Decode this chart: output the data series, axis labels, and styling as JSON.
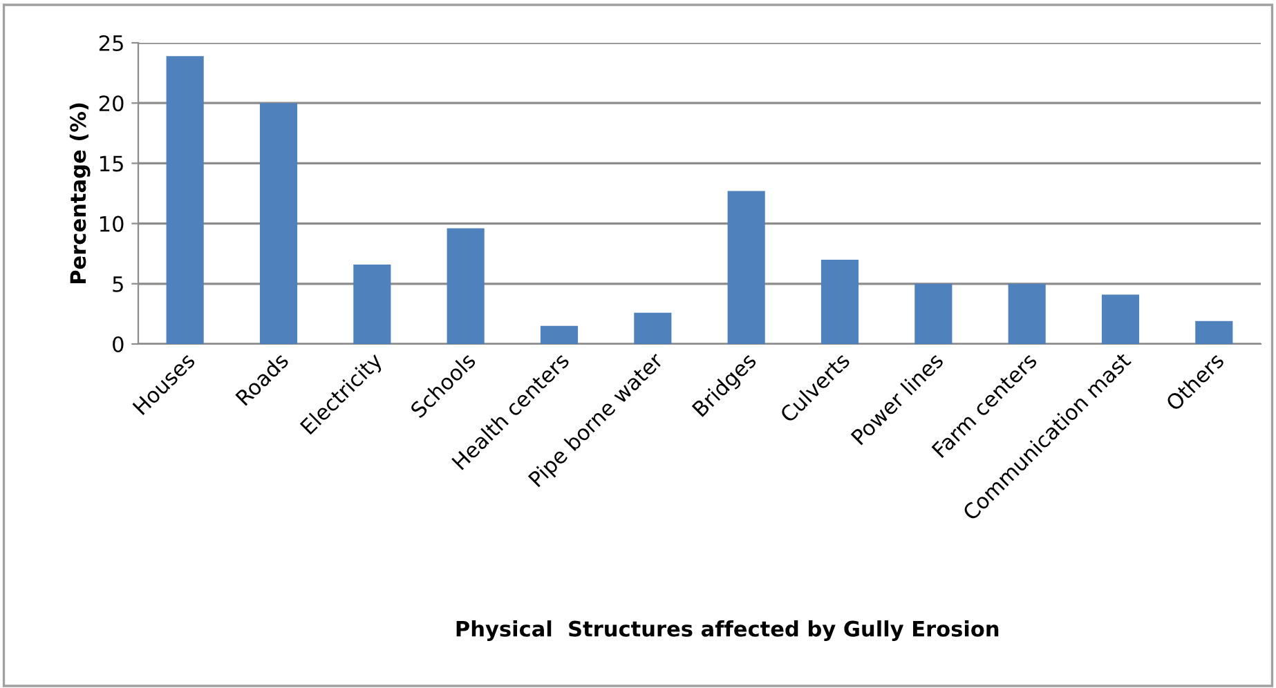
{
  "chart_data": {
    "type": "bar",
    "xlabel": "Physical  Structures affected by Gully Erosion",
    "ylabel": "Percentage (%)",
    "categories": [
      "Houses",
      "Roads",
      "Electricity",
      "Schools",
      "Health centers",
      "Pipe borne water",
      "Bridges",
      "Culverts",
      "Power lines",
      "Farm centers",
      "Communication mast",
      "Others"
    ],
    "values": [
      23.9,
      20.0,
      6.6,
      9.6,
      1.5,
      2.6,
      12.7,
      7.0,
      5.0,
      5.0,
      4.1,
      1.9
    ],
    "color": "#4f81bd",
    "ylim": [
      0,
      25
    ],
    "yticks": [
      0,
      5,
      10,
      15,
      20,
      25
    ],
    "grid": "y",
    "legend": false
  }
}
